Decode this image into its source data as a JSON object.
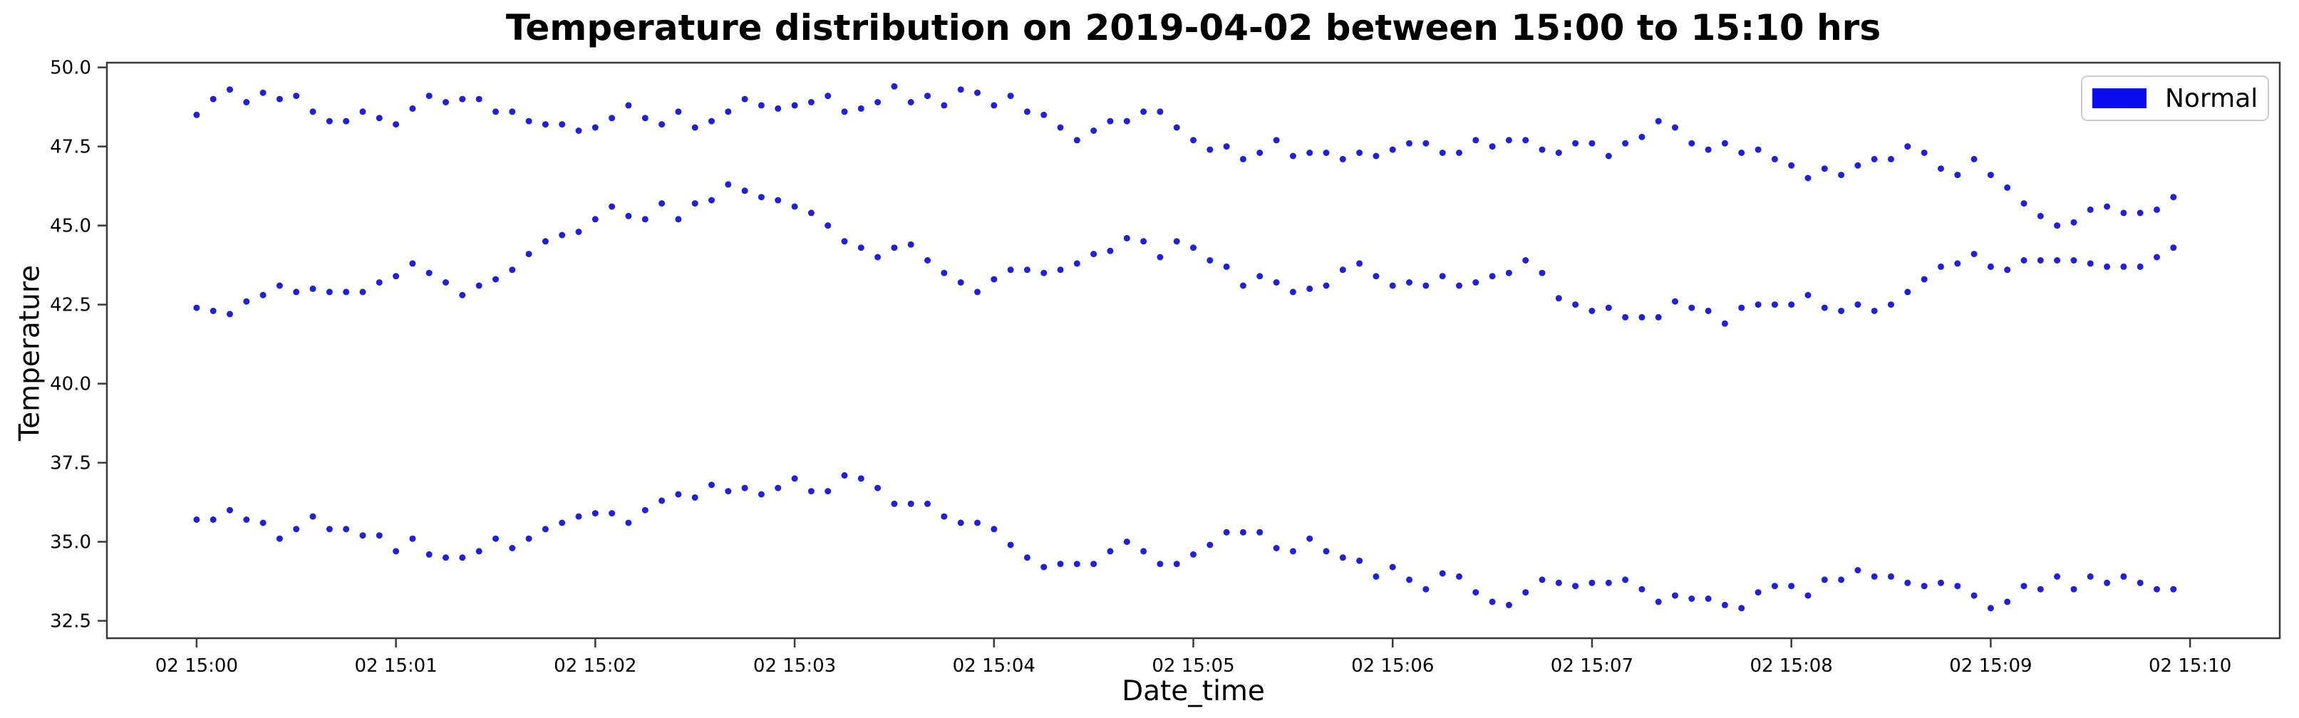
{
  "chart_data": {
    "type": "scatter",
    "title": "Temperature distribution on 2019-04-02 between 15:00 to 15:10 hrs",
    "xlabel": "Date_time",
    "ylabel": "Temperature",
    "legend": {
      "label": "Normal",
      "swatch_color": "#0b0bee",
      "position": "upper right"
    },
    "point_color": "#2121d2",
    "point_radius": 4.5,
    "grid": false,
    "x_unit": "seconds after 2019-04-02 15:00",
    "x_step_seconds": 5,
    "x_start_seconds": 0,
    "xlim_seconds": [
      -27,
      627
    ],
    "ylim": [
      31.95,
      50.15
    ],
    "x_ticks_seconds": [
      0,
      60,
      120,
      180,
      240,
      300,
      360,
      420,
      480,
      540,
      600
    ],
    "x_tick_labels": [
      "02 15:00",
      "02 15:01",
      "02 15:02",
      "02 15:03",
      "02 15:04",
      "02 15:05",
      "02 15:06",
      "02 15:07",
      "02 15:08",
      "02 15:09",
      "02 15:10"
    ],
    "y_ticks": [
      32.5,
      35.0,
      37.5,
      40.0,
      42.5,
      45.0,
      47.5,
      50.0
    ],
    "y_tick_labels": [
      "32.5",
      "35.0",
      "37.5",
      "40.0",
      "42.5",
      "45.0",
      "47.5",
      "50.0"
    ],
    "series": [
      {
        "name": "Normal",
        "band": "upper",
        "values": [
          48.5,
          49.0,
          49.3,
          48.9,
          49.2,
          49.0,
          49.1,
          48.6,
          48.3,
          48.3,
          48.6,
          48.4,
          48.2,
          48.7,
          49.1,
          48.9,
          49.0,
          49.0,
          48.6,
          48.6,
          48.3,
          48.2,
          48.2,
          48.0,
          48.1,
          48.4,
          48.8,
          48.4,
          48.2,
          48.6,
          48.1,
          48.3,
          48.6,
          49.0,
          48.8,
          48.7,
          48.8,
          48.9,
          49.1,
          48.6,
          48.7,
          48.9,
          49.4,
          48.9,
          49.1,
          48.8,
          49.3,
          49.2,
          48.8,
          49.1,
          48.6,
          48.5,
          48.1,
          47.7,
          48.0,
          48.3,
          48.3,
          48.6,
          48.6,
          48.1,
          47.7,
          47.4,
          47.5,
          47.1,
          47.3,
          47.7,
          47.2,
          47.3,
          47.3,
          47.1,
          47.3,
          47.2,
          47.4,
          47.6,
          47.6,
          47.3,
          47.3,
          47.7,
          47.5,
          47.7,
          47.7,
          47.4,
          47.3,
          47.6,
          47.6,
          47.2,
          47.6,
          47.8,
          48.3,
          48.1,
          47.6,
          47.4,
          47.6,
          47.3,
          47.4,
          47.1,
          46.9,
          46.5,
          46.8,
          46.6,
          46.9,
          47.1,
          47.1,
          47.5,
          47.3,
          46.8,
          46.6,
          47.1,
          46.6,
          46.2,
          45.7,
          45.3,
          45.0,
          45.1,
          45.5,
          45.6,
          45.4,
          45.4,
          45.5,
          45.9
        ]
      },
      {
        "name": "Normal",
        "band": "middle",
        "values": [
          42.4,
          42.3,
          42.2,
          42.6,
          42.8,
          43.1,
          42.9,
          43.0,
          42.9,
          42.9,
          42.9,
          43.2,
          43.4,
          43.8,
          43.5,
          43.2,
          42.8,
          43.1,
          43.3,
          43.6,
          44.1,
          44.5,
          44.7,
          44.8,
          45.2,
          45.6,
          45.3,
          45.2,
          45.7,
          45.2,
          45.7,
          45.8,
          46.3,
          46.1,
          45.9,
          45.8,
          45.6,
          45.4,
          45.0,
          44.5,
          44.3,
          44.0,
          44.3,
          44.4,
          43.9,
          43.5,
          43.2,
          42.9,
          43.3,
          43.6,
          43.6,
          43.5,
          43.6,
          43.8,
          44.1,
          44.2,
          44.6,
          44.5,
          44.0,
          44.5,
          44.3,
          43.9,
          43.7,
          43.1,
          43.4,
          43.2,
          42.9,
          43.0,
          43.1,
          43.6,
          43.8,
          43.4,
          43.1,
          43.2,
          43.1,
          43.4,
          43.1,
          43.2,
          43.4,
          43.5,
          43.9,
          43.5,
          42.7,
          42.5,
          42.3,
          42.4,
          42.1,
          42.1,
          42.1,
          42.6,
          42.4,
          42.3,
          41.9,
          42.4,
          42.5,
          42.5,
          42.5,
          42.8,
          42.4,
          42.3,
          42.5,
          42.3,
          42.5,
          42.9,
          43.3,
          43.7,
          43.8,
          44.1,
          43.7,
          43.6,
          43.9,
          43.9,
          43.9,
          43.9,
          43.8,
          43.7,
          43.7,
          43.7,
          44.0,
          44.3
        ]
      },
      {
        "name": "Normal",
        "band": "lower",
        "values": [
          35.7,
          35.7,
          36.0,
          35.7,
          35.6,
          35.1,
          35.4,
          35.8,
          35.4,
          35.4,
          35.2,
          35.2,
          34.7,
          35.1,
          34.6,
          34.5,
          34.5,
          34.7,
          35.1,
          34.8,
          35.1,
          35.4,
          35.6,
          35.8,
          35.9,
          35.9,
          35.6,
          36.0,
          36.3,
          36.5,
          36.4,
          36.8,
          36.6,
          36.7,
          36.5,
          36.7,
          37.0,
          36.6,
          36.6,
          37.1,
          37.0,
          36.7,
          36.2,
          36.2,
          36.2,
          35.8,
          35.6,
          35.6,
          35.4,
          34.9,
          34.5,
          34.2,
          34.3,
          34.3,
          34.3,
          34.7,
          35.0,
          34.7,
          34.3,
          34.3,
          34.6,
          34.9,
          35.3,
          35.3,
          35.3,
          34.8,
          34.7,
          35.1,
          34.7,
          34.5,
          34.4,
          33.9,
          34.2,
          33.8,
          33.5,
          34.0,
          33.9,
          33.4,
          33.1,
          33.0,
          33.4,
          33.8,
          33.7,
          33.6,
          33.7,
          33.7,
          33.8,
          33.5,
          33.1,
          33.3,
          33.2,
          33.2,
          33.0,
          32.9,
          33.4,
          33.6,
          33.6,
          33.3,
          33.8,
          33.8,
          34.1,
          33.9,
          33.9,
          33.7,
          33.6,
          33.7,
          33.6,
          33.3,
          32.9,
          33.1,
          33.6,
          33.5,
          33.9,
          33.5,
          33.9,
          33.7,
          33.9,
          33.7,
          33.5,
          33.5
        ]
      }
    ]
  },
  "axes_style": {
    "spine_color": "#3a3a3a",
    "tick_color": "#3a3a3a",
    "tick_label_size": 26,
    "tick_length": 13
  }
}
